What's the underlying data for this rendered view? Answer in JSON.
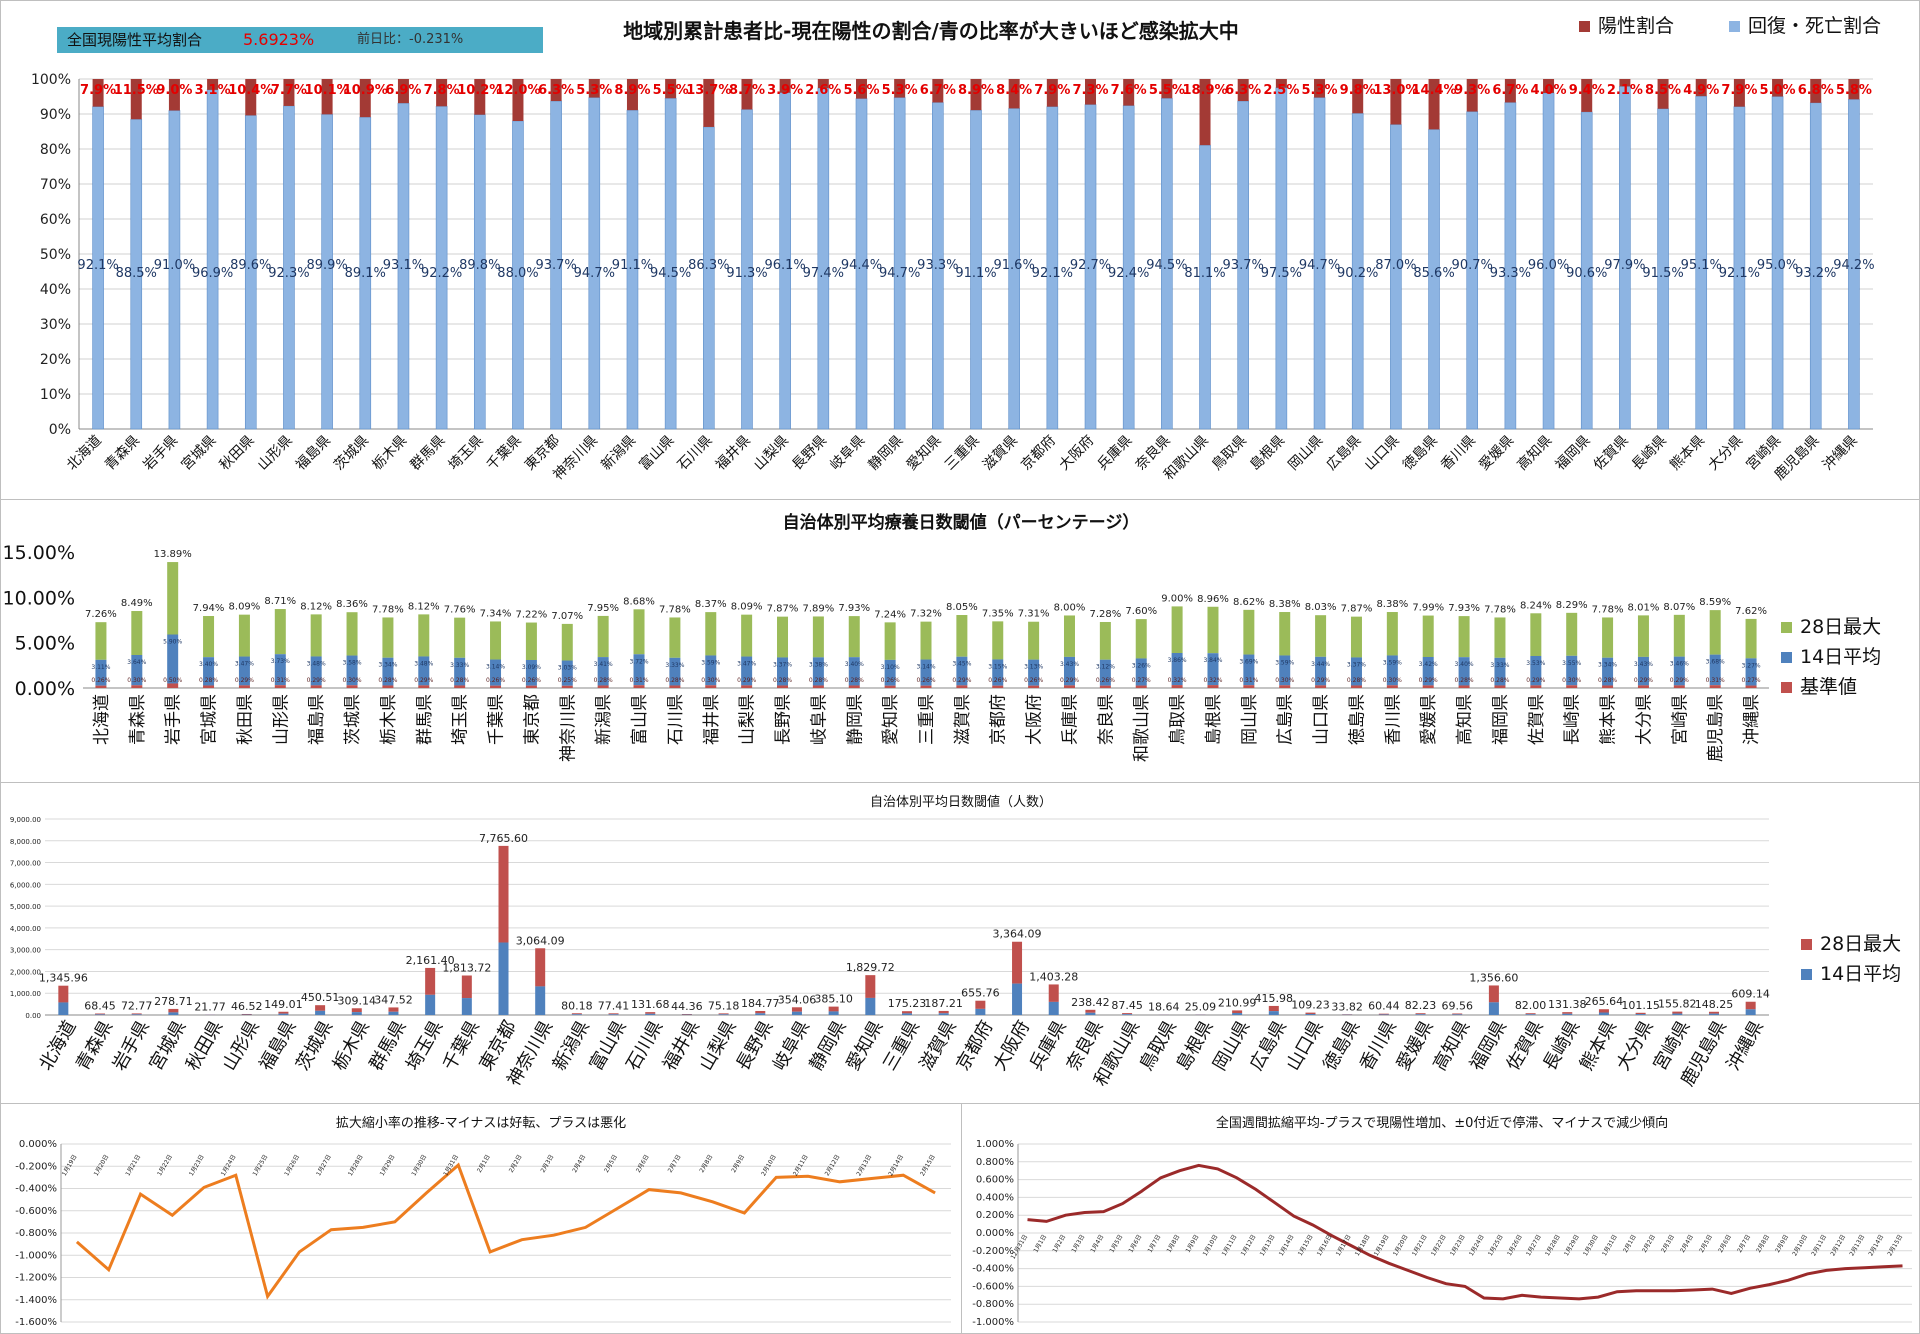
{
  "prefectures": [
    "北海道",
    "青森県",
    "岩手県",
    "宮城県",
    "秋田県",
    "山形県",
    "福島県",
    "茨城県",
    "栃木県",
    "群馬県",
    "埼玉県",
    "千葉県",
    "東京都",
    "神奈川県",
    "新潟県",
    "富山県",
    "石川県",
    "福井県",
    "山梨県",
    "長野県",
    "岐阜県",
    "静岡県",
    "愛知県",
    "三重県",
    "滋賀県",
    "京都府",
    "大阪府",
    "兵庫県",
    "奈良県",
    "和歌山県",
    "鳥取県",
    "島根県",
    "岡山県",
    "広島県",
    "山口県",
    "徳島県",
    "香川県",
    "愛媛県",
    "高知県",
    "福岡県",
    "佐賀県",
    "長崎県",
    "熊本県",
    "大分県",
    "宮崎県",
    "鹿児島県",
    "沖縄県"
  ],
  "banner": {
    "label": "全国現陽性平均割合",
    "value": "5.6923%",
    "change": "前日比：-0.231%"
  },
  "colors": {
    "positive": "#a33a35",
    "recovered": "#8db4e2",
    "max28": "#9bbb59",
    "avg14": "#4f81bd",
    "base": "#c0504d",
    "orange": "#ed7d1f",
    "darkred": "#9b2a2a"
  },
  "chart_data": [
    {
      "type": "bar",
      "title": "地域別累計患者比-現在陽性の割合/青の比率が大きいほど感染拡大中",
      "series": [
        {
          "name": "陽性割合",
          "labels": [
            "7.9%",
            "11.5%",
            "9.0%",
            "3.1%",
            "10.4%",
            "7.7%",
            "10.1%",
            "10.9%",
            "6.9%",
            "7.8%",
            "10.2%",
            "12.0%",
            "6.3%",
            "5.3%",
            "8.9%",
            "5.5%",
            "13.7%",
            "8.7%",
            "3.9%",
            "2.6%",
            "5.6%",
            "5.3%",
            "6.7%",
            "8.9%",
            "8.4%",
            "7.9%",
            "7.3%",
            "7.6%",
            "5.5%",
            "18.9%",
            "6.3%",
            "2.5%",
            "5.3%",
            "9.8%",
            "13.0%",
            "14.4%",
            "9.3%",
            "6.7%",
            "4.0%",
            "9.4%",
            "2.1%",
            "8.5%",
            "4.9%",
            "7.9%",
            "5.0%",
            "6.8%",
            "5.8%"
          ]
        },
        {
          "name": "回復・死亡割合",
          "values": [
            92.1,
            88.5,
            91.0,
            96.9,
            89.6,
            92.3,
            89.9,
            89.1,
            93.1,
            92.2,
            89.8,
            88.0,
            93.7,
            94.7,
            91.1,
            94.5,
            86.3,
            91.3,
            96.1,
            97.4,
            94.4,
            94.7,
            93.3,
            91.1,
            91.6,
            92.1,
            92.7,
            92.4,
            94.5,
            81.1,
            93.7,
            97.5,
            94.7,
            90.2,
            87.0,
            85.6,
            90.7,
            93.3,
            96.0,
            90.6,
            97.9,
            91.5,
            95.1,
            92.1,
            95.0,
            93.2,
            94.2
          ],
          "labels": [
            "92.1%",
            "88.5%",
            "91.0%",
            "96.9%",
            "89.6%",
            "92.3%",
            "89.9%",
            "89.1%",
            "93.1%",
            "92.2%",
            "89.8%",
            "88.0%",
            "93.7%",
            "94.7%",
            "91.1%",
            "94.5%",
            "86.3%",
            "91.3%",
            "96.1%",
            "97.4%",
            "94.4%",
            "94.7%",
            "93.3%",
            "91.1%",
            "91.6%",
            "92.1%",
            "92.7%",
            "92.4%",
            "94.5%",
            "81.1%",
            "93.7%",
            "97.5%",
            "94.7%",
            "90.2%",
            "87.0%",
            "85.6%",
            "90.7%",
            "93.3%",
            "96.0%",
            "90.6%",
            "97.9%",
            "91.5%",
            "95.1%",
            "92.1%",
            "95.0%",
            "93.2%",
            "94.2%"
          ]
        }
      ],
      "yticks": [
        "0%",
        "10%",
        "20%",
        "30%",
        "40%",
        "50%",
        "60%",
        "70%",
        "80%",
        "90%",
        "100%"
      ],
      "ylim": [
        0,
        100
      ],
      "legend": "top-right"
    },
    {
      "type": "bar",
      "title": "自治体別平均療養日数閾値（パーセンテージ）",
      "series": [
        {
          "name": "28日最大",
          "values": [
            7.26,
            8.49,
            13.89,
            7.94,
            8.09,
            8.71,
            8.12,
            8.36,
            7.78,
            8.12,
            7.76,
            7.34,
            7.22,
            7.07,
            7.95,
            8.68,
            7.78,
            8.37,
            8.09,
            7.87,
            7.89,
            7.93,
            7.24,
            7.32,
            8.05,
            7.35,
            7.31,
            8.0,
            7.28,
            7.6,
            9.0,
            8.96,
            8.62,
            8.38,
            8.03,
            7.87,
            8.38,
            7.99,
            7.93,
            7.78,
            8.24,
            8.29,
            7.78,
            8.01,
            8.07,
            8.59,
            7.62
          ],
          "labels": [
            "7.26%",
            "8.49%",
            "13.89%",
            "7.94%",
            "8.09%",
            "8.71%",
            "8.12%",
            "8.36%",
            "7.78%",
            "8.12%",
            "7.76%",
            "7.34%",
            "7.22%",
            "7.07%",
            "7.95%",
            "8.68%",
            "7.78%",
            "8.37%",
            "8.09%",
            "7.87%",
            "7.89%",
            "7.93%",
            "7.24%",
            "7.32%",
            "8.05%",
            "7.35%",
            "7.31%",
            "8.00%",
            "7.28%",
            "7.60%",
            "9.00%",
            "8.96%",
            "8.62%",
            "8.38%",
            "8.03%",
            "7.87%",
            "8.38%",
            "7.99%",
            "7.93%",
            "7.78%",
            "8.24%",
            "8.29%",
            "7.78%",
            "8.01%",
            "8.07%",
            "8.59%",
            "7.62%"
          ]
        },
        {
          "name": "14日平均",
          "values": [
            3.11,
            3.64,
            5.9,
            3.4,
            3.47,
            3.73,
            3.48,
            3.58,
            3.34,
            3.48,
            3.33,
            3.14,
            3.09,
            3.03,
            3.41,
            3.72,
            3.33,
            3.59,
            3.47,
            3.37,
            3.38,
            3.4,
            3.1,
            3.14,
            3.45,
            3.15,
            3.13,
            3.43,
            3.12,
            3.26,
            3.86,
            3.84,
            3.69,
            3.59,
            3.44,
            3.37,
            3.59,
            3.42,
            3.4,
            3.33,
            3.53,
            3.55,
            3.34,
            3.43,
            3.46,
            3.68,
            3.27
          ],
          "labels": [
            "3.11%",
            "3.64%",
            "5.90%",
            "3.40%",
            "3.47%",
            "3.73%",
            "3.48%",
            "3.58%",
            "3.34%",
            "3.48%",
            "3.33%",
            "3.14%",
            "3.09%",
            "3.03%",
            "3.41%",
            "3.72%",
            "3.33%",
            "3.59%",
            "3.47%",
            "3.37%",
            "3.38%",
            "3.40%",
            "3.10%",
            "3.14%",
            "3.45%",
            "3.15%",
            "3.13%",
            "3.43%",
            "3.12%",
            "3.26%",
            "3.86%",
            "3.84%",
            "3.69%",
            "3.59%",
            "3.44%",
            "3.37%",
            "3.59%",
            "3.42%",
            "3.40%",
            "3.33%",
            "3.53%",
            "3.55%",
            "3.34%",
            "3.43%",
            "3.46%",
            "3.68%",
            "3.27%"
          ]
        },
        {
          "name": "基準値",
          "values": [
            0.26,
            0.3,
            0.5,
            0.28,
            0.29,
            0.31,
            0.29,
            0.3,
            0.28,
            0.29,
            0.28,
            0.26,
            0.26,
            0.25,
            0.28,
            0.31,
            0.28,
            0.3,
            0.29,
            0.28,
            0.28,
            0.28,
            0.26,
            0.26,
            0.29,
            0.26,
            0.26,
            0.29,
            0.26,
            0.27,
            0.32,
            0.32,
            0.31,
            0.3,
            0.29,
            0.28,
            0.3,
            0.29,
            0.28,
            0.28,
            0.29,
            0.3,
            0.28,
            0.29,
            0.29,
            0.31,
            0.27
          ],
          "labels": [
            "0.26%",
            "0.30%",
            "0.50%",
            "0.28%",
            "0.29%",
            "0.31%",
            "0.29%",
            "0.30%",
            "0.28%",
            "0.29%",
            "0.28%",
            "0.26%",
            "0.26%",
            "0.25%",
            "0.28%",
            "0.31%",
            "0.28%",
            "0.30%",
            "0.29%",
            "0.28%",
            "0.28%",
            "0.28%",
            "0.26%",
            "0.26%",
            "0.29%",
            "0.26%",
            "0.26%",
            "0.29%",
            "0.26%",
            "0.27%",
            "0.32%",
            "0.32%",
            "0.31%",
            "0.30%",
            "0.29%",
            "0.28%",
            "0.30%",
            "0.29%",
            "0.28%",
            "0.28%",
            "0.29%",
            "0.30%",
            "0.28%",
            "0.29%",
            "0.29%",
            "0.31%",
            "0.27%"
          ]
        }
      ],
      "yticks": [
        "0.00%",
        "5.00%",
        "10.00%",
        "15.00%"
      ],
      "ylim": [
        0,
        15
      ],
      "legend": "right"
    },
    {
      "type": "bar",
      "title": "自治体別平均日数閾値（人数）",
      "series": [
        {
          "name": "28日最大",
          "values": [
            1345.96,
            68.45,
            72.77,
            278.71,
            21.77,
            46.52,
            149.01,
            450.51,
            309.14,
            347.52,
            2161.4,
            1813.72,
            7765.6,
            3064.09,
            80.18,
            77.41,
            131.68,
            44.36,
            75.18,
            184.77,
            354.06,
            385.1,
            1829.72,
            175.23,
            187.21,
            655.76,
            3364.09,
            1403.28,
            238.42,
            87.45,
            18.64,
            25.09,
            210.99,
            415.98,
            109.23,
            33.82,
            60.44,
            82.23,
            69.56,
            1356.6,
            82.0,
            131.38,
            265.64,
            101.15,
            155.82,
            148.25,
            609.14
          ],
          "labels": [
            "1,345.96",
            "68.45",
            "72.77",
            "278.71",
            "21.77",
            "46.52",
            "149.01",
            "450.51",
            "309.14",
            "347.52",
            "2,161.40",
            "1,813.72",
            "7,765.60",
            "3,064.09",
            "80.18",
            "77.41",
            "131.68",
            "44.36",
            "75.18",
            "184.77",
            "354.06",
            "385.10",
            "1,829.72",
            "175.23",
            "187.21",
            "655.76",
            "3,364.09",
            "1,403.28",
            "238.42",
            "87.45",
            "18.64",
            "25.09",
            "210.99",
            "415.98",
            "109.23",
            "33.82",
            "60.44",
            "82.23",
            "69.56",
            "1,356.60",
            "82.00",
            "131.38",
            "265.64",
            "101.15",
            "155.82",
            "148.25",
            "609.14"
          ]
        },
        {
          "name": "14日平均",
          "values": [
            576.8,
            29.3,
            31.2,
            119.4,
            9.3,
            19.9,
            63.9,
            193.1,
            132.5,
            148.9,
            926.3,
            777.3,
            3328.1,
            1313.2,
            34.4,
            33.2,
            56.4,
            19.0,
            32.2,
            79.2,
            151.7,
            165.0,
            784.2,
            75.1,
            80.2,
            281.0,
            1441.8,
            601.4,
            102.2,
            37.5,
            8.0,
            10.8,
            90.4,
            178.3,
            46.8,
            14.5,
            25.9,
            35.2,
            29.8,
            581.4,
            35.1,
            56.3,
            113.8,
            43.4,
            66.8,
            63.5,
            261.1
          ]
        }
      ],
      "yticks": [
        "0.00",
        "1,000.00",
        "2,000.00",
        "3,000.00",
        "4,000.00",
        "5,000.00",
        "6,000.00",
        "7,000.00",
        "8,000.00",
        "9,000.00"
      ],
      "ylim": [
        0,
        9000
      ],
      "legend": "right"
    },
    {
      "type": "line",
      "title": "拡大縮小率の推移-マイナスは好転、プラスは悪化",
      "x": [
        "1月19日",
        "1月20日",
        "1月21日",
        "1月22日",
        "1月23日",
        "1月24日",
        "1月25日",
        "1月26日",
        "1月27日",
        "1月28日",
        "1月29日",
        "1月30日",
        "1月31日",
        "2月1日",
        "2月2日",
        "2月3日",
        "2月4日",
        "2月5日",
        "2月6日",
        "2月7日",
        "2月8日",
        "2月9日",
        "2月10日",
        "2月11日",
        "2月12日",
        "2月13日",
        "2月14日",
        "2月15日"
      ],
      "series": [
        {
          "values": [
            -0.88,
            -1.13,
            -0.45,
            -0.64,
            -0.39,
            -0.28,
            -1.37,
            -0.97,
            -0.77,
            -0.75,
            -0.7,
            -0.44,
            -0.19,
            -0.97,
            -0.86,
            -0.82,
            -0.75,
            -0.58,
            -0.41,
            -0.44,
            -0.52,
            -0.62,
            -0.3,
            -0.29,
            -0.34,
            -0.31,
            -0.28,
            -0.44
          ]
        }
      ],
      "yticks": [
        "0.000%",
        "-0.200%",
        "-0.400%",
        "-0.600%",
        "-0.800%",
        "-1.000%",
        "-1.200%",
        "-1.400%",
        "-1.600%"
      ],
      "ylim": [
        -1.6,
        0
      ]
    },
    {
      "type": "line",
      "title": "全国週間拡縮平均-プラスで現陽性増加、±0付近で停滞、マイナスで減少傾向",
      "x": [
        "12月31日",
        "1月1日",
        "1月2日",
        "1月3日",
        "1月4日",
        "1月5日",
        "1月6日",
        "1月7日",
        "1月8日",
        "1月9日",
        "1月10日",
        "1月11日",
        "1月12日",
        "1月13日",
        "1月14日",
        "1月15日",
        "1月16日",
        "1月17日",
        "1月18日",
        "1月19日",
        "1月20日",
        "1月21日",
        "1月22日",
        "1月23日",
        "1月24日",
        "1月25日",
        "1月26日",
        "1月27日",
        "1月28日",
        "1月29日",
        "1月30日",
        "1月31日",
        "2月1日",
        "2月2日",
        "2月3日",
        "2月4日",
        "2月5日",
        "2月6日",
        "2月7日",
        "2月8日",
        "2月9日",
        "2月10日",
        "2月11日",
        "2月12日",
        "2月13日",
        "2月14日",
        "2月15日"
      ],
      "series": [
        {
          "values": [
            0.15,
            0.13,
            0.2,
            0.23,
            0.24,
            0.33,
            0.47,
            0.62,
            0.7,
            0.76,
            0.72,
            0.62,
            0.49,
            0.34,
            0.19,
            0.09,
            -0.03,
            -0.14,
            -0.25,
            -0.34,
            -0.42,
            -0.5,
            -0.57,
            -0.6,
            -0.73,
            -0.74,
            -0.7,
            -0.72,
            -0.73,
            -0.74,
            -0.72,
            -0.66,
            -0.65,
            -0.65,
            -0.65,
            -0.64,
            -0.63,
            -0.68,
            -0.62,
            -0.58,
            -0.53,
            -0.46,
            -0.42,
            -0.4,
            -0.39,
            -0.38,
            -0.37
          ]
        }
      ],
      "yticks": [
        "1.000%",
        "0.800%",
        "0.600%",
        "0.400%",
        "0.200%",
        "0.000%",
        "-0.200%",
        "-0.400%",
        "-0.600%",
        "-0.800%",
        "-1.000%"
      ],
      "ylim": [
        -1.0,
        1.0
      ]
    }
  ]
}
